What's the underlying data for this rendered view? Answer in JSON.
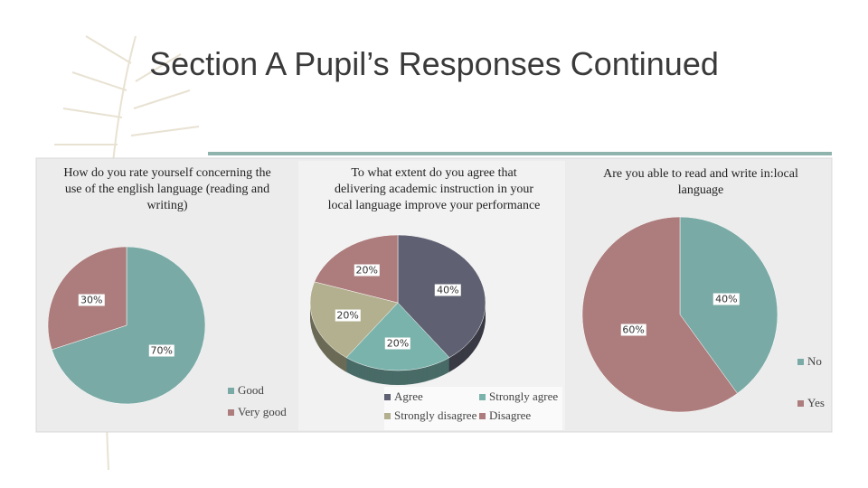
{
  "title": "Section A Pupil’s Responses Continued",
  "chart_data": [
    {
      "type": "pie",
      "title": "How do you rate yourself concerning the use of the english language (reading and writing)",
      "categories": [
        "Good",
        "Very good"
      ],
      "values": [
        70,
        30
      ],
      "value_labels": [
        "70%",
        "30%"
      ],
      "colors": [
        "#7aaaa5",
        "#ad7c7c"
      ]
    },
    {
      "type": "pie3d",
      "title": "To what extent do you agree that delivering academic instruction in your local language improve your performance",
      "categories": [
        "Agree",
        "Strongly agree",
        "Strongly disagree",
        "Disagree"
      ],
      "values": [
        40,
        20,
        20,
        20
      ],
      "value_labels": [
        "40%",
        "20%",
        "20%",
        "20%"
      ],
      "colors": [
        "#5f6072",
        "#7ab3ab",
        "#b3b08f",
        "#ad7c7c"
      ]
    },
    {
      "type": "pie",
      "title": "Are you able to read and write in:local language",
      "categories": [
        "No",
        "Yes"
      ],
      "values": [
        40,
        60
      ],
      "value_labels": [
        "40%",
        "60%"
      ],
      "colors": [
        "#7aaaa5",
        "#ad7c7c"
      ]
    }
  ]
}
